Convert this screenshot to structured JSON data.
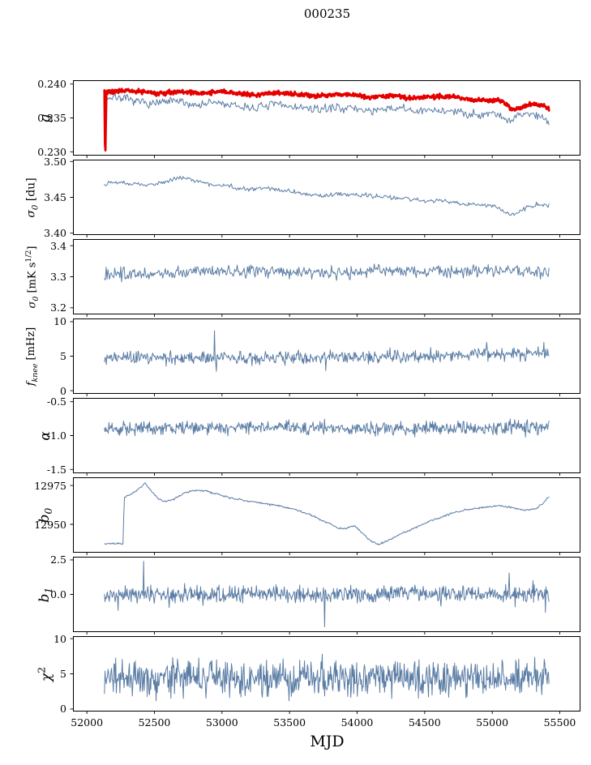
{
  "figure": {
    "title": "000235",
    "xlabel": "MJD",
    "background": "#ffffff",
    "axis_color": "#000000",
    "line_color_primary": "#5b7da5",
    "line_color_secondary": "#e50000",
    "xlim": [
      51900,
      55650
    ],
    "xticks": [
      52000,
      52500,
      53000,
      53500,
      54000,
      54500,
      55000,
      55500
    ],
    "xtick_labels": [
      "52000",
      "52500",
      "53000",
      "53500",
      "54000",
      "54500",
      "55000",
      "55500"
    ]
  },
  "chart_data": [
    {
      "name": "g",
      "type": "line",
      "ylabel_parts": [
        [
          "i",
          "g"
        ]
      ],
      "ylim": [
        0.2295,
        0.2405
      ],
      "yticks": [
        0.23,
        0.235,
        0.24
      ],
      "ytick_labels": [
        "0.230",
        "0.235",
        "0.240"
      ],
      "series": [
        {
          "name": "g-raw",
          "color": "#5b7da5",
          "linewidth": 1.0,
          "n": 460,
          "x_range": [
            52130,
            55420
          ],
          "noise": 0.00035,
          "trend": [
            [
              52130,
              0.2379
            ],
            [
              52230,
              0.2381
            ],
            [
              52350,
              0.2374
            ],
            [
              52500,
              0.2371
            ],
            [
              52650,
              0.2375
            ],
            [
              52800,
              0.2369
            ],
            [
              52950,
              0.2373
            ],
            [
              53100,
              0.2367
            ],
            [
              53250,
              0.2365
            ],
            [
              53400,
              0.237
            ],
            [
              53550,
              0.2366
            ],
            [
              53700,
              0.2362
            ],
            [
              53850,
              0.2366
            ],
            [
              54000,
              0.2363
            ],
            [
              54150,
              0.236
            ],
            [
              54300,
              0.2365
            ],
            [
              54450,
              0.2359
            ],
            [
              54600,
              0.2362
            ],
            [
              54750,
              0.2358
            ],
            [
              54900,
              0.2355
            ],
            [
              55000,
              0.2358
            ],
            [
              55080,
              0.2352
            ],
            [
              55130,
              0.2344
            ],
            [
              55200,
              0.2355
            ],
            [
              55280,
              0.2357
            ],
            [
              55350,
              0.2352
            ],
            [
              55420,
              0.2347
            ]
          ],
          "spikes": []
        },
        {
          "name": "g-smoothed",
          "color": "#e50000",
          "linewidth": 2.8,
          "n": 900,
          "x_range": [
            52130,
            55420
          ],
          "noise": 0.00018,
          "trend": [
            [
              52130,
              0.2387
            ],
            [
              52250,
              0.2391
            ],
            [
              52400,
              0.2389
            ],
            [
              52550,
              0.2386
            ],
            [
              52700,
              0.2389
            ],
            [
              52850,
              0.2387
            ],
            [
              53000,
              0.2389
            ],
            [
              53100,
              0.2386
            ],
            [
              53250,
              0.2384
            ],
            [
              53400,
              0.2387
            ],
            [
              53550,
              0.2385
            ],
            [
              53700,
              0.2382
            ],
            [
              53850,
              0.2385
            ],
            [
              54000,
              0.2383
            ],
            [
              54100,
              0.238
            ],
            [
              54250,
              0.2383
            ],
            [
              54400,
              0.2379
            ],
            [
              54550,
              0.2381
            ],
            [
              54700,
              0.2382
            ],
            [
              54850,
              0.2377
            ],
            [
              55000,
              0.2376
            ],
            [
              55080,
              0.2374
            ],
            [
              55150,
              0.2362
            ],
            [
              55220,
              0.2366
            ],
            [
              55300,
              0.2371
            ],
            [
              55370,
              0.2369
            ],
            [
              55420,
              0.2363
            ]
          ],
          "spikes": [
            [
              52133,
              0.2312
            ],
            [
              52137,
              0.2302
            ],
            [
              52141,
              0.2348
            ]
          ]
        }
      ]
    },
    {
      "name": "sigma0-du",
      "type": "line",
      "ylabel_parts": [
        [
          "i",
          "σ"
        ],
        [
          "sub",
          "0"
        ],
        [
          "n",
          " [du]"
        ]
      ],
      "ylim": [
        3.398,
        3.502
      ],
      "yticks": [
        3.4,
        3.45,
        3.5
      ],
      "ytick_labels": [
        "3.40",
        "3.45",
        "3.50"
      ],
      "series": [
        {
          "name": "sigma0-du",
          "color": "#5b7da5",
          "linewidth": 1.0,
          "n": 460,
          "x_range": [
            52130,
            55420
          ],
          "noise": 0.0018,
          "trend": [
            [
              52130,
              3.469
            ],
            [
              52250,
              3.471
            ],
            [
              52400,
              3.467
            ],
            [
              52550,
              3.469
            ],
            [
              52700,
              3.479
            ],
            [
              52800,
              3.474
            ],
            [
              52900,
              3.469
            ],
            [
              53000,
              3.467
            ],
            [
              53100,
              3.464
            ],
            [
              53200,
              3.461
            ],
            [
              53300,
              3.463
            ],
            [
              53450,
              3.46
            ],
            [
              53600,
              3.455
            ],
            [
              53750,
              3.451
            ],
            [
              53900,
              3.455
            ],
            [
              54050,
              3.453
            ],
            [
              54200,
              3.451
            ],
            [
              54350,
              3.449
            ],
            [
              54500,
              3.445
            ],
            [
              54650,
              3.445
            ],
            [
              54800,
              3.441
            ],
            [
              54950,
              3.439
            ],
            [
              55050,
              3.436
            ],
            [
              55120,
              3.427
            ],
            [
              55180,
              3.428
            ],
            [
              55260,
              3.436
            ],
            [
              55340,
              3.441
            ],
            [
              55420,
              3.437
            ]
          ],
          "spikes": []
        }
      ]
    },
    {
      "name": "sigma0-mk",
      "type": "line",
      "ylabel_parts": [
        [
          "i",
          "σ"
        ],
        [
          "sub",
          "0"
        ],
        [
          "n",
          " [mK s"
        ],
        [
          "sup",
          "1/2"
        ],
        [
          "n",
          "]"
        ]
      ],
      "ylim": [
        3.18,
        3.42
      ],
      "yticks": [
        3.2,
        3.3,
        3.4
      ],
      "ytick_labels": [
        "3.2",
        "3.3",
        "3.4"
      ],
      "series": [
        {
          "name": "sigma0-mk",
          "color": "#5b7da5",
          "linewidth": 1.0,
          "n": 520,
          "x_range": [
            52130,
            55420
          ],
          "noise": 0.011,
          "trend": [
            [
              52130,
              3.305
            ],
            [
              52600,
              3.312
            ],
            [
              53100,
              3.318
            ],
            [
              53600,
              3.312
            ],
            [
              54100,
              3.316
            ],
            [
              54600,
              3.318
            ],
            [
              55000,
              3.322
            ],
            [
              55420,
              3.316
            ]
          ],
          "spikes": []
        }
      ]
    },
    {
      "name": "fknee",
      "type": "line",
      "ylabel_parts": [
        [
          "i",
          "f"
        ],
        [
          "sub",
          "knee"
        ],
        [
          "n",
          " [mHz]"
        ]
      ],
      "ylim": [
        -0.4,
        10.4
      ],
      "yticks": [
        0,
        5,
        10
      ],
      "ytick_labels": [
        "0",
        "5",
        "10"
      ],
      "series": [
        {
          "name": "fknee",
          "color": "#5b7da5",
          "linewidth": 1.0,
          "n": 700,
          "x_range": [
            52130,
            55420
          ],
          "noise": 0.5,
          "trend": [
            [
              52130,
              4.85
            ],
            [
              52700,
              4.75
            ],
            [
              53300,
              4.7
            ],
            [
              53900,
              4.85
            ],
            [
              54500,
              5.0
            ],
            [
              54900,
              5.35
            ],
            [
              55200,
              5.3
            ],
            [
              55420,
              5.5
            ]
          ],
          "spikes": [
            [
              52945,
              8.7
            ],
            [
              52958,
              2.8
            ],
            [
              53770,
              2.9
            ],
            [
              54960,
              7.0
            ],
            [
              55380,
              7.0
            ]
          ]
        }
      ]
    },
    {
      "name": "alpha",
      "type": "line",
      "ylabel_parts": [
        [
          "i",
          "α"
        ]
      ],
      "ylim": [
        -1.55,
        -0.45
      ],
      "yticks": [
        -1.5,
        -1.0,
        -0.5
      ],
      "ytick_labels": [
        "-1.5",
        "-1.0",
        "-0.5"
      ],
      "series": [
        {
          "name": "alpha",
          "color": "#5b7da5",
          "linewidth": 1.0,
          "n": 700,
          "x_range": [
            52130,
            55420
          ],
          "noise": 0.055,
          "trend": [
            [
              52130,
              -0.895
            ],
            [
              53000,
              -0.885
            ],
            [
              54000,
              -0.89
            ],
            [
              55420,
              -0.875
            ]
          ],
          "spikes": []
        }
      ]
    },
    {
      "name": "b0",
      "type": "line",
      "ylabel_parts": [
        [
          "i",
          "b"
        ],
        [
          "sub",
          "0"
        ]
      ],
      "ylim": [
        12932,
        12980
      ],
      "yticks": [
        12950,
        12975
      ],
      "ytick_labels": [
        "12950",
        "12975"
      ],
      "series": [
        {
          "name": "b0",
          "color": "#5b7da5",
          "linewidth": 1.0,
          "n": 600,
          "x_range": [
            52130,
            55420
          ],
          "noise": 0.35,
          "trend": [
            [
              52130,
              12937.5
            ],
            [
              52268,
              12937.8
            ],
            [
              52276,
              12967
            ],
            [
              52340,
              12970
            ],
            [
              52400,
              12974
            ],
            [
              52430,
              12976.5
            ],
            [
              52460,
              12973
            ],
            [
              52520,
              12967
            ],
            [
              52570,
              12964.5
            ],
            [
              52640,
              12966
            ],
            [
              52720,
              12970
            ],
            [
              52800,
              12972
            ],
            [
              52880,
              12971.5
            ],
            [
              52960,
              12969.5
            ],
            [
              53060,
              12967
            ],
            [
              53180,
              12965
            ],
            [
              53300,
              12963.5
            ],
            [
              53420,
              12962
            ],
            [
              53540,
              12959.5
            ],
            [
              53660,
              12956
            ],
            [
              53780,
              12951
            ],
            [
              53860,
              12947.5
            ],
            [
              53920,
              12947
            ],
            [
              53980,
              12949.5
            ],
            [
              54040,
              12944
            ],
            [
              54100,
              12939.5
            ],
            [
              54160,
              12937
            ],
            [
              54240,
              12940
            ],
            [
              54340,
              12944.5
            ],
            [
              54460,
              12949
            ],
            [
              54580,
              12953.5
            ],
            [
              54700,
              12957
            ],
            [
              54820,
              12959.5
            ],
            [
              54940,
              12961
            ],
            [
              55060,
              12962
            ],
            [
              55160,
              12960.5
            ],
            [
              55240,
              12959
            ],
            [
              55320,
              12960
            ],
            [
              55370,
              12963
            ],
            [
              55420,
              12968
            ]
          ],
          "spikes": []
        }
      ]
    },
    {
      "name": "b1",
      "type": "line",
      "ylabel_parts": [
        [
          "i",
          "b"
        ],
        [
          "sub",
          "1"
        ]
      ],
      "ylim": [
        -2.7,
        2.7
      ],
      "yticks": [
        0.0,
        2.5
      ],
      "ytick_labels": [
        "0.0",
        "2.5"
      ],
      "series": [
        {
          "name": "b1",
          "color": "#5b7da5",
          "linewidth": 1.0,
          "n": 750,
          "x_range": [
            52130,
            55420
          ],
          "noise": 0.32,
          "trend": [
            [
              52130,
              0.0
            ],
            [
              55420,
              0.05
            ]
          ],
          "spikes": [
            [
              52230,
              -1.15
            ],
            [
              52418,
              2.4
            ],
            [
              52610,
              -0.95
            ],
            [
              53760,
              -2.35
            ],
            [
              54620,
              -0.85
            ],
            [
              55125,
              1.55
            ],
            [
              55170,
              -0.9
            ],
            [
              55300,
              1.0
            ],
            [
              55395,
              -1.3
            ]
          ]
        }
      ]
    },
    {
      "name": "chi2",
      "type": "line",
      "ylabel_parts": [
        [
          "i",
          "χ"
        ],
        [
          "sup",
          "2"
        ]
      ],
      "ylim": [
        -0.3,
        10.3
      ],
      "yticks": [
        0,
        5,
        10
      ],
      "ytick_labels": [
        "0",
        "5",
        "10"
      ],
      "series": [
        {
          "name": "chi2",
          "color": "#5b7da5",
          "linewidth": 1.0,
          "n": 750,
          "x_range": [
            52130,
            55420
          ],
          "noise": 1.4,
          "trend": [
            [
              52130,
              4.2
            ],
            [
              52800,
              4.5
            ],
            [
              53400,
              4.2
            ],
            [
              54000,
              4.4
            ],
            [
              54700,
              4.3
            ],
            [
              55420,
              4.6
            ]
          ],
          "spikes": []
        }
      ]
    }
  ]
}
